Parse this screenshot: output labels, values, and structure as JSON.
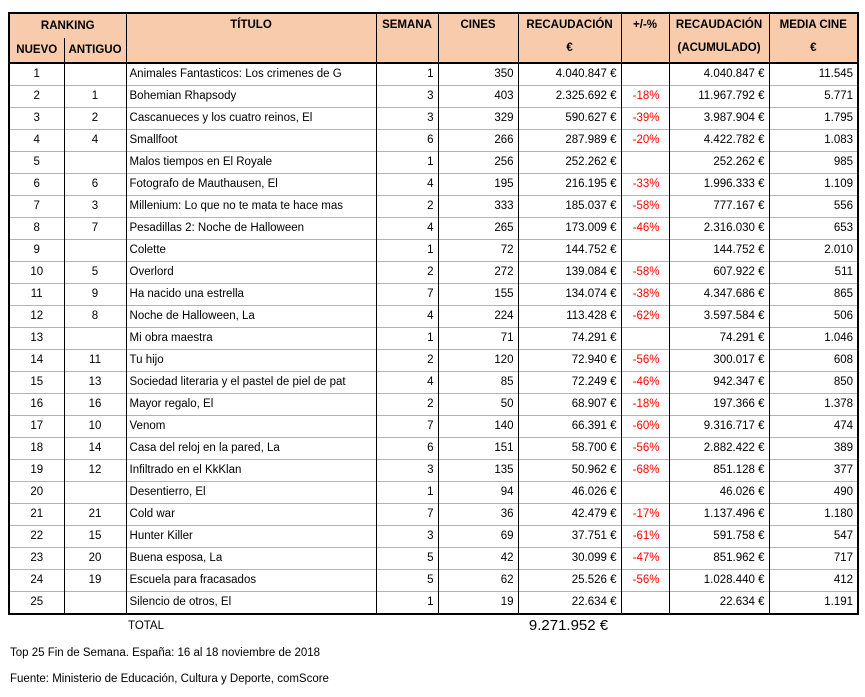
{
  "colors": {
    "header_bg": "#F8CBAD",
    "negative_pct": "#FF0000",
    "grid_outer": "#000000",
    "row_separator": "#B3B3B3"
  },
  "header": {
    "ranking": "RANKING",
    "nuevo": "NUEVO",
    "antiguo": "ANTIGUO",
    "titulo": "TÍTULO",
    "semana": "SEMANA",
    "cines": "CINES",
    "recaudacion_line1": "RECAUDACIÓN",
    "recaudacion_line2": "€",
    "pct": "+/-%",
    "acumulado_line1": "RECAUDACIÓN",
    "acumulado_line2": "(ACUMULADO)",
    "media_line1": "MEDIA CINE",
    "media_line2": "€"
  },
  "rows": [
    {
      "nuevo": "1",
      "antiguo": "",
      "titulo": "Animales Fantasticos: Los crimenes de G",
      "semana": "1",
      "cines": "350",
      "recaudacion": "4.040.847 €",
      "pct": "",
      "acumulado": "4.040.847 €",
      "media": "11.545"
    },
    {
      "nuevo": "2",
      "antiguo": "1",
      "titulo": "Bohemian Rhapsody",
      "semana": "3",
      "cines": "403",
      "recaudacion": "2.325.692 €",
      "pct": "-18%",
      "acumulado": "11.967.792 €",
      "media": "5.771"
    },
    {
      "nuevo": "3",
      "antiguo": "2",
      "titulo": "Cascanueces y los cuatro reinos, El",
      "semana": "3",
      "cines": "329",
      "recaudacion": "590.627 €",
      "pct": "-39%",
      "acumulado": "3.987.904 €",
      "media": "1.795"
    },
    {
      "nuevo": "4",
      "antiguo": "4",
      "titulo": "Smallfoot",
      "semana": "6",
      "cines": "266",
      "recaudacion": "287.989 €",
      "pct": "-20%",
      "acumulado": "4.422.782 €",
      "media": "1.083"
    },
    {
      "nuevo": "5",
      "antiguo": "",
      "titulo": "Malos tiempos en El Royale",
      "semana": "1",
      "cines": "256",
      "recaudacion": "252.262 €",
      "pct": "",
      "acumulado": "252.262 €",
      "media": "985"
    },
    {
      "nuevo": "6",
      "antiguo": "6",
      "titulo": "Fotografo de Mauthausen, El",
      "semana": "4",
      "cines": "195",
      "recaudacion": "216.195 €",
      "pct": "-33%",
      "acumulado": "1.996.333 €",
      "media": "1.109"
    },
    {
      "nuevo": "7",
      "antiguo": "3",
      "titulo": "Millenium: Lo que no te mata te hace mas",
      "semana": "2",
      "cines": "333",
      "recaudacion": "185.037 €",
      "pct": "-58%",
      "acumulado": "777.167 €",
      "media": "556"
    },
    {
      "nuevo": "8",
      "antiguo": "7",
      "titulo": "Pesadillas 2: Noche de Halloween",
      "semana": "4",
      "cines": "265",
      "recaudacion": "173.009 €",
      "pct": "-46%",
      "acumulado": "2.316.030 €",
      "media": "653"
    },
    {
      "nuevo": "9",
      "antiguo": "",
      "titulo": "Colette",
      "semana": "1",
      "cines": "72",
      "recaudacion": "144.752 €",
      "pct": "",
      "acumulado": "144.752 €",
      "media": "2.010"
    },
    {
      "nuevo": "10",
      "antiguo": "5",
      "titulo": "Overlord",
      "semana": "2",
      "cines": "272",
      "recaudacion": "139.084 €",
      "pct": "-58%",
      "acumulado": "607.922 €",
      "media": "511"
    },
    {
      "nuevo": "11",
      "antiguo": "9",
      "titulo": "Ha nacido una estrella",
      "semana": "7",
      "cines": "155",
      "recaudacion": "134.074 €",
      "pct": "-38%",
      "acumulado": "4.347.686 €",
      "media": "865"
    },
    {
      "nuevo": "12",
      "antiguo": "8",
      "titulo": "Noche de Halloween, La",
      "semana": "4",
      "cines": "224",
      "recaudacion": "113.428 €",
      "pct": "-62%",
      "acumulado": "3.597.584 €",
      "media": "506"
    },
    {
      "nuevo": "13",
      "antiguo": "",
      "titulo": "Mi obra maestra",
      "semana": "1",
      "cines": "71",
      "recaudacion": "74.291 €",
      "pct": "",
      "acumulado": "74.291 €",
      "media": "1.046"
    },
    {
      "nuevo": "14",
      "antiguo": "11",
      "titulo": "Tu hijo",
      "semana": "2",
      "cines": "120",
      "recaudacion": "72.940 €",
      "pct": "-56%",
      "acumulado": "300.017 €",
      "media": "608"
    },
    {
      "nuevo": "15",
      "antiguo": "13",
      "titulo": "Sociedad literaria y el pastel de piel de pat",
      "semana": "4",
      "cines": "85",
      "recaudacion": "72.249 €",
      "pct": "-46%",
      "acumulado": "942.347 €",
      "media": "850"
    },
    {
      "nuevo": "16",
      "antiguo": "16",
      "titulo": "Mayor regalo, El",
      "semana": "2",
      "cines": "50",
      "recaudacion": "68.907 €",
      "pct": "-18%",
      "acumulado": "197.366 €",
      "media": "1.378"
    },
    {
      "nuevo": "17",
      "antiguo": "10",
      "titulo": "Venom",
      "semana": "7",
      "cines": "140",
      "recaudacion": "66.391 €",
      "pct": "-60%",
      "acumulado": "9.316.717 €",
      "media": "474"
    },
    {
      "nuevo": "18",
      "antiguo": "14",
      "titulo": "Casa del reloj en la pared, La",
      "semana": "6",
      "cines": "151",
      "recaudacion": "58.700 €",
      "pct": "-56%",
      "acumulado": "2.882.422 €",
      "media": "389"
    },
    {
      "nuevo": "19",
      "antiguo": "12",
      "titulo": "Infiltrado en el KkKlan",
      "semana": "3",
      "cines": "135",
      "recaudacion": "50.962 €",
      "pct": "-68%",
      "acumulado": "851.128 €",
      "media": "377"
    },
    {
      "nuevo": "20",
      "antiguo": "",
      "titulo": "Desentierro, El",
      "semana": "1",
      "cines": "94",
      "recaudacion": "46.026 €",
      "pct": "",
      "acumulado": "46.026 €",
      "media": "490"
    },
    {
      "nuevo": "21",
      "antiguo": "21",
      "titulo": "Cold war",
      "semana": "7",
      "cines": "36",
      "recaudacion": "42.479 €",
      "pct": "-17%",
      "acumulado": "1.137.496 €",
      "media": "1.180"
    },
    {
      "nuevo": "22",
      "antiguo": "15",
      "titulo": "Hunter Killer",
      "semana": "3",
      "cines": "69",
      "recaudacion": "37.751 €",
      "pct": "-61%",
      "acumulado": "591.758 €",
      "media": "547"
    },
    {
      "nuevo": "23",
      "antiguo": "20",
      "titulo": "Buena esposa, La",
      "semana": "5",
      "cines": "42",
      "recaudacion": "30.099 €",
      "pct": "-47%",
      "acumulado": "851.962 €",
      "media": "717"
    },
    {
      "nuevo": "24",
      "antiguo": "19",
      "titulo": "Escuela para fracasados",
      "semana": "5",
      "cines": "62",
      "recaudacion": "25.526 €",
      "pct": "-56%",
      "acumulado": "1.028.440 €",
      "media": "412"
    },
    {
      "nuevo": "25",
      "antiguo": "",
      "titulo": "Silencio de otros, El",
      "semana": "1",
      "cines": "19",
      "recaudacion": "22.634 €",
      "pct": "",
      "acumulado": "22.634 €",
      "media": "1.191"
    }
  ],
  "total": {
    "label": "TOTAL",
    "value": "9.271.952 €"
  },
  "footer": {
    "line1": "Top 25 Fin de Semana. España: 16 al 18 noviembre de 2018",
    "line2": "Fuente: Ministerio de Educación, Cultura y Deporte, comScore"
  }
}
